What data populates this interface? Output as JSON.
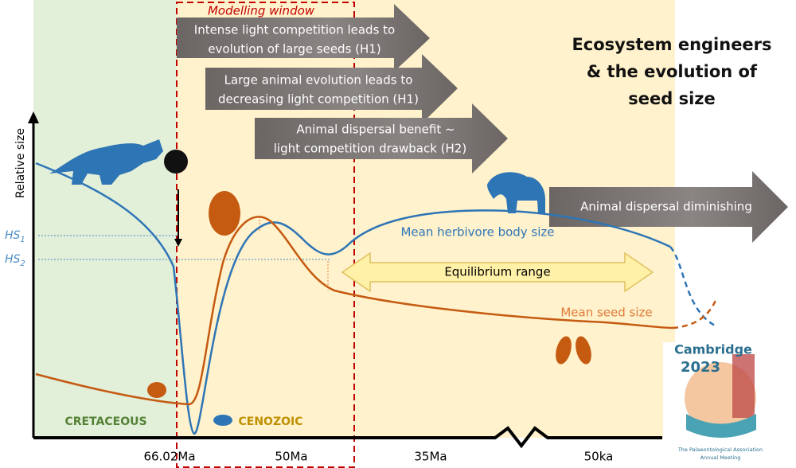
{
  "title": [
    "Ecosystem engineers",
    "& the evolution of",
    "seed size"
  ],
  "modelling_window": "Modelling window",
  "arrows": [
    {
      "lines": [
        "Intense light competition leads to",
        "evolution of large seeds (H1)"
      ]
    },
    {
      "lines": [
        "Large animal evolution leads to",
        "decreasing light competition (H1)"
      ]
    },
    {
      "lines": [
        "Animal dispersal benefit ~",
        "light competition drawback (H2)"
      ]
    },
    {
      "lines": [
        "Animal dispersal diminishing"
      ]
    }
  ],
  "y_axis_label": "Relative size",
  "markers": [
    {
      "text": "HS",
      "sub": "1"
    },
    {
      "text": "HS",
      "sub": "2"
    }
  ],
  "curves": {
    "herbivore": "Mean herbivore body size",
    "seed": "Mean seed size"
  },
  "equilibrium": "Equilibrium range",
  "eras": [
    "CRETACEOUS",
    "CENOZOIC"
  ],
  "x_labels": [
    "66.02Ma",
    "50Ma",
    "35Ma",
    "50ka"
  ],
  "logo": {
    "city": "Cambridge",
    "year": "2023",
    "org": "The Palaeontological Association",
    "event": "Annual Meeting"
  }
}
